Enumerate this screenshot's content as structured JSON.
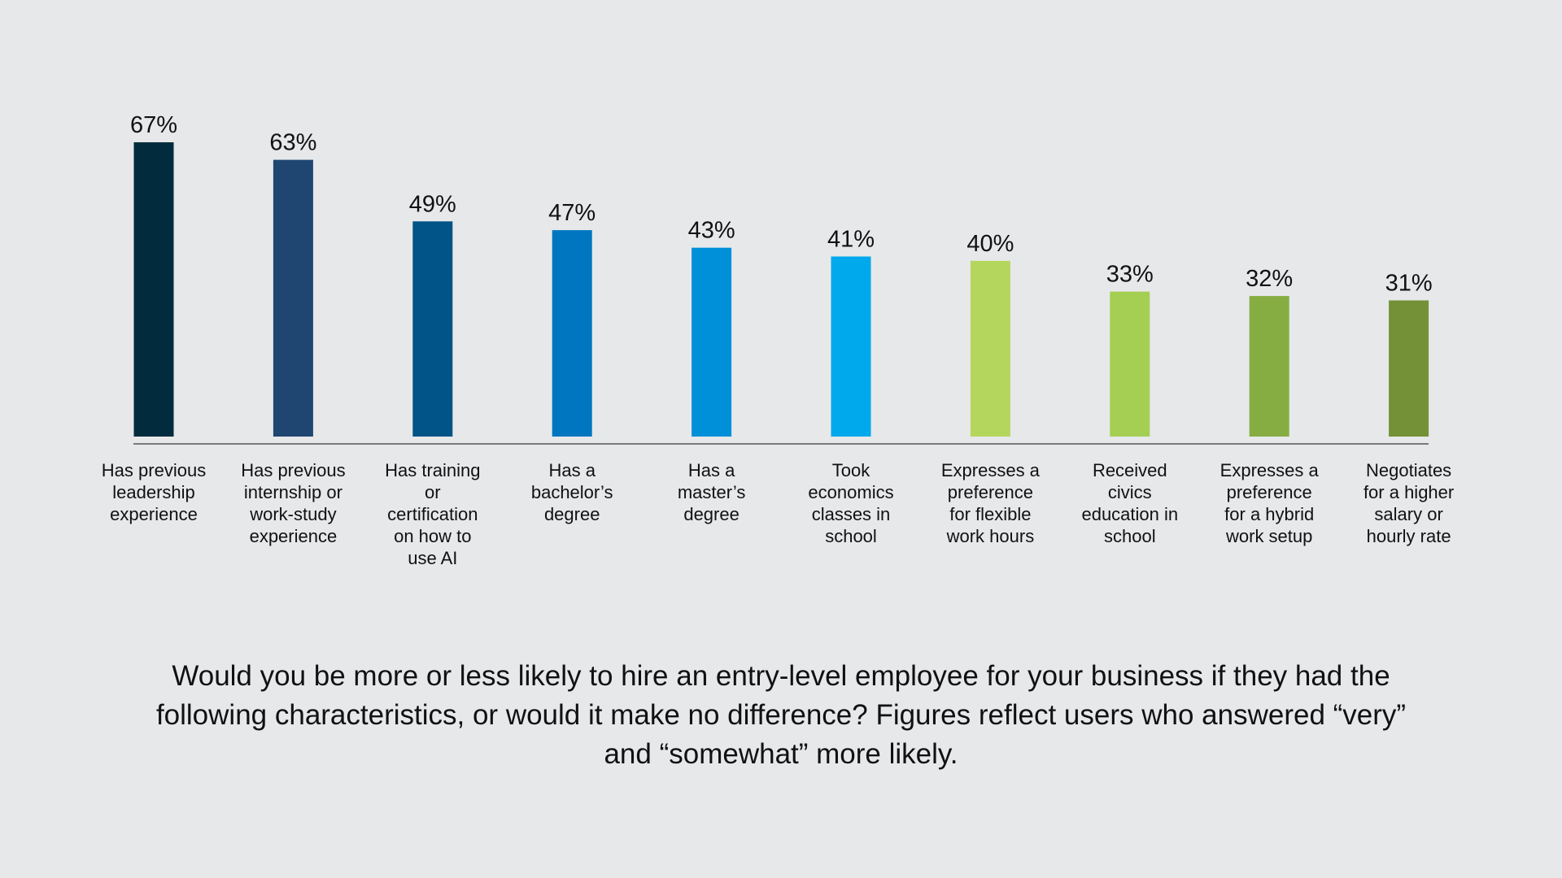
{
  "chart_data": {
    "type": "bar",
    "categories": [
      [
        "Has previous",
        "leadership",
        "experience"
      ],
      [
        "Has previous",
        "internship or",
        "work-study",
        "experience"
      ],
      [
        "Has training",
        "or",
        "certification",
        "on how to",
        "use AI"
      ],
      [
        "Has a",
        "bachelor’s",
        "degree"
      ],
      [
        "Has a",
        "master’s",
        "degree"
      ],
      [
        "Took",
        "economics",
        "classes in",
        "school"
      ],
      [
        "Expresses a",
        "preference",
        "for flexible",
        "work hours"
      ],
      [
        "Received",
        "civics",
        "education in",
        "school"
      ],
      [
        "Expresses a",
        "preference",
        "for a hybrid",
        "work setup"
      ],
      [
        "Negotiates",
        "for a higher",
        "salary or",
        "hourly rate"
      ]
    ],
    "values": [
      67,
      63,
      49,
      47,
      43,
      41,
      40,
      33,
      32,
      31
    ],
    "value_labels": [
      "67%",
      "63%",
      "49%",
      "47%",
      "43%",
      "41%",
      "40%",
      "33%",
      "32%",
      "31%"
    ],
    "colors": [
      "#022c3d",
      "#1f4670",
      "#005487",
      "#0076c0",
      "#0090da",
      "#00a9ec",
      "#b5d65c",
      "#a4cf53",
      "#86ad42",
      "#759137"
    ],
    "ylim": [
      0,
      67
    ],
    "grid": false,
    "legend": "none"
  },
  "caption": "Would you be more or less likely to hire an entry-level employee for your business if they had the following characteristics, or would it make no difference? Figures reflect users who answered “very” and “somewhat” more likely."
}
